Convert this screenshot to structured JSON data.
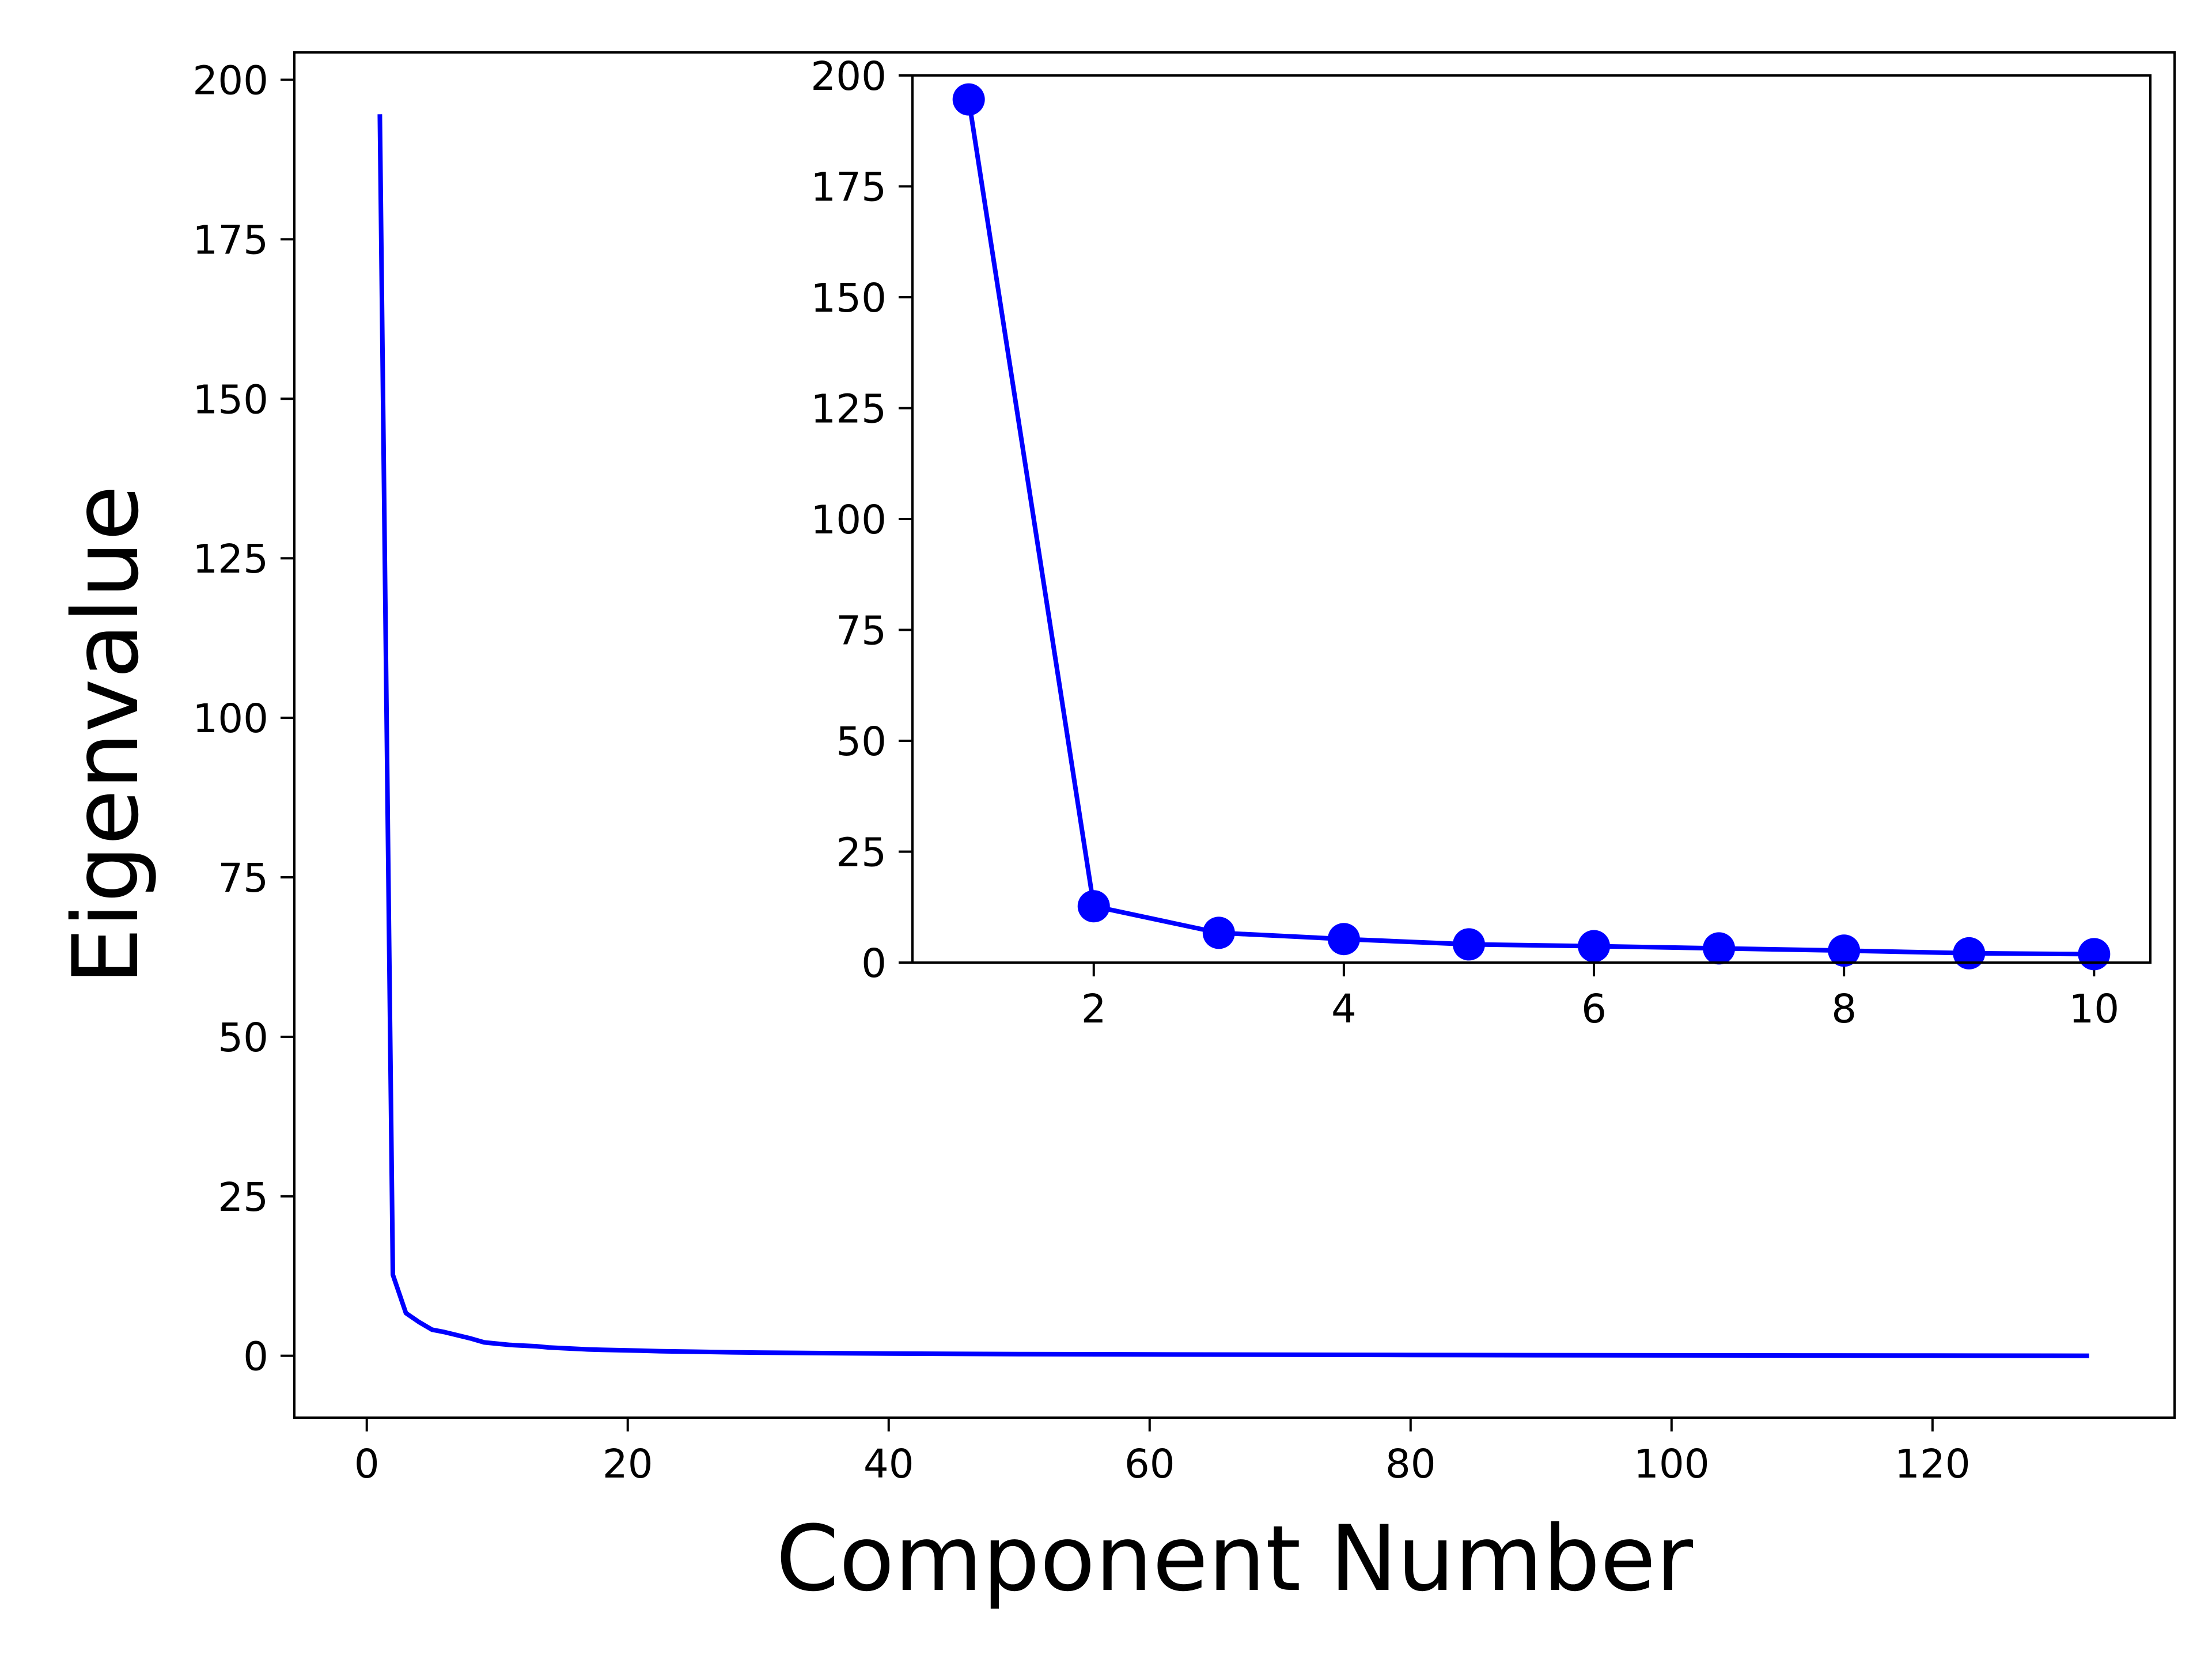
{
  "chart_data": [
    {
      "type": "line",
      "role": "main",
      "xlabel": "Component Number",
      "ylabel": "Eigenvalue",
      "xlim": [
        -5.55,
        138.55
      ],
      "ylim": [
        -9.69,
        204.29
      ],
      "xticks": [
        0,
        20,
        40,
        60,
        80,
        100,
        120
      ],
      "yticks": [
        0,
        25,
        50,
        75,
        100,
        125,
        150,
        175,
        200
      ],
      "grid": false,
      "series": [
        {
          "color": "#0000ff",
          "markers": false,
          "x": [
            1,
            2,
            3,
            4,
            5,
            6,
            7,
            8,
            9,
            10,
            11,
            12,
            13,
            14,
            15,
            16,
            17,
            18,
            19,
            20,
            21,
            22,
            23,
            25,
            28,
            30,
            35,
            40,
            50,
            60,
            70,
            80,
            90,
            100,
            110,
            120,
            132
          ],
          "y": [
            194.6,
            12.7,
            6.7,
            5.3,
            4.1,
            3.7,
            3.2,
            2.7,
            2.1,
            1.9,
            1.7,
            1.6,
            1.5,
            1.3,
            1.2,
            1.1,
            1.0,
            0.95,
            0.9,
            0.85,
            0.8,
            0.75,
            0.7,
            0.65,
            0.55,
            0.5,
            0.42,
            0.35,
            0.27,
            0.21,
            0.17,
            0.13,
            0.1,
            0.07,
            0.05,
            0.03,
            0.01
          ]
        }
      ]
    },
    {
      "type": "line",
      "role": "inset",
      "xlabel": "",
      "ylabel": "",
      "xlim": [
        0.55,
        10.45
      ],
      "ylim": [
        0,
        200
      ],
      "xticks": [
        2,
        4,
        6,
        8,
        10
      ],
      "yticks": [
        0,
        25,
        50,
        75,
        100,
        125,
        150,
        175,
        200
      ],
      "grid": false,
      "series": [
        {
          "color": "#0000ff",
          "markers": true,
          "x": [
            1,
            2,
            3,
            4,
            5,
            6,
            7,
            8,
            9,
            10
          ],
          "y": [
            194.6,
            12.7,
            6.7,
            5.3,
            4.1,
            3.7,
            3.2,
            2.7,
            2.1,
            1.9
          ]
        }
      ]
    }
  ]
}
